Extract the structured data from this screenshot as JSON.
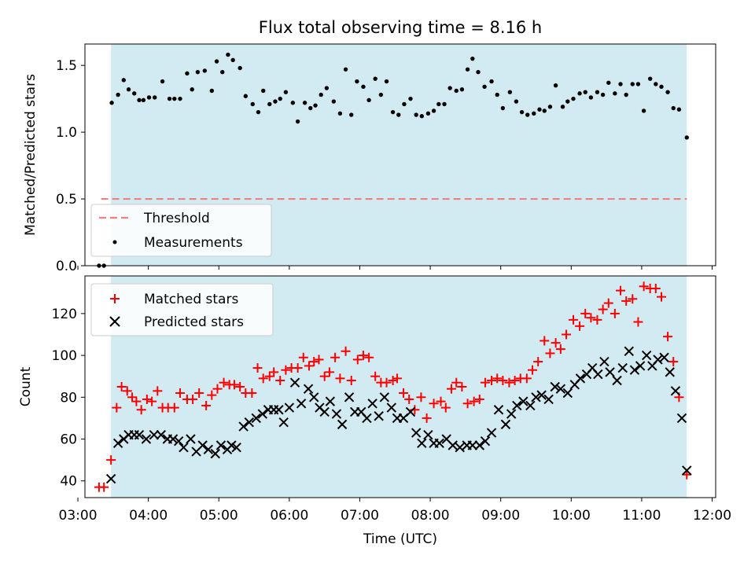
{
  "title": "Flux total observing time = 8.16 h",
  "colors": {
    "shade": "#add8e6",
    "threshold": "#f08080",
    "matched": "#ff0000",
    "predicted": "#000000",
    "measurements": "#000000"
  },
  "chart_data": [
    {
      "type": "scatter",
      "ylabel": "Matched/Predicted stars",
      "xlim": [
        3.1,
        12.05
      ],
      "ylim": [
        0,
        1.66
      ],
      "yticks": [
        0.0,
        0.5,
        1.0,
        1.5
      ],
      "ytick_labels": [
        "0.0",
        "0.5",
        "1.0",
        "1.5"
      ],
      "shaded_span": [
        3.47,
        11.64
      ],
      "threshold": {
        "y": 0.5,
        "x_range": [
          3.33,
          11.64
        ]
      },
      "legend": {
        "location": "lower-left",
        "entries": [
          "Threshold",
          "Measurements"
        ]
      },
      "series": [
        {
          "name": "Measurements",
          "x": [
            3.3,
            3.37,
            3.48,
            3.57,
            3.65,
            3.72,
            3.8,
            3.87,
            3.93,
            4.01,
            4.09,
            4.2,
            4.3,
            4.37,
            4.45,
            4.55,
            4.62,
            4.7,
            4.8,
            4.9,
            4.97,
            5.05,
            5.13,
            5.2,
            5.3,
            5.38,
            5.48,
            5.56,
            5.63,
            5.72,
            5.8,
            5.87,
            5.95,
            6.05,
            6.12,
            6.22,
            6.3,
            6.37,
            6.45,
            6.53,
            6.63,
            6.72,
            6.8,
            6.88,
            6.96,
            7.05,
            7.13,
            7.22,
            7.3,
            7.38,
            7.47,
            7.55,
            7.63,
            7.72,
            7.8,
            7.88,
            7.97,
            8.05,
            8.12,
            8.2,
            8.28,
            8.37,
            8.45,
            8.53,
            8.6,
            8.68,
            8.77,
            8.87,
            8.95,
            9.03,
            9.13,
            9.22,
            9.3,
            9.38,
            9.47,
            9.55,
            9.62,
            9.7,
            9.78,
            9.88,
            9.95,
            10.03,
            10.12,
            10.2,
            10.28,
            10.37,
            10.45,
            10.53,
            10.62,
            10.7,
            10.78,
            10.87,
            10.95,
            11.03,
            11.12,
            11.2,
            11.28,
            11.37,
            11.45,
            11.53,
            11.64
          ],
          "y": [
            0.0,
            0.0,
            1.22,
            1.28,
            1.39,
            1.32,
            1.29,
            1.24,
            1.24,
            1.26,
            1.26,
            1.38,
            1.25,
            1.25,
            1.25,
            1.44,
            1.32,
            1.45,
            1.46,
            1.31,
            1.53,
            1.45,
            1.58,
            1.54,
            1.48,
            1.27,
            1.21,
            1.15,
            1.31,
            1.21,
            1.23,
            1.25,
            1.3,
            1.22,
            1.08,
            1.22,
            1.18,
            1.2,
            1.28,
            1.33,
            1.23,
            1.14,
            1.47,
            1.13,
            1.38,
            1.34,
            1.24,
            1.4,
            1.28,
            1.38,
            1.15,
            1.13,
            1.21,
            1.25,
            1.13,
            1.12,
            1.14,
            1.16,
            1.21,
            1.21,
            1.33,
            1.31,
            1.32,
            1.47,
            1.55,
            1.45,
            1.34,
            1.38,
            1.28,
            1.18,
            1.3,
            1.23,
            1.15,
            1.13,
            1.14,
            1.17,
            1.16,
            1.19,
            1.35,
            1.19,
            1.23,
            1.25,
            1.29,
            1.3,
            1.26,
            1.3,
            1.28,
            1.37,
            1.29,
            1.36,
            1.28,
            1.36,
            1.36,
            1.16,
            1.4,
            1.36,
            1.34,
            1.3,
            1.18,
            1.17,
            0.96
          ]
        }
      ]
    },
    {
      "type": "scatter",
      "ylabel": "Count",
      "xlabel": "Time (UTC)",
      "xlim": [
        3.1,
        12.05
      ],
      "ylim": [
        32,
        138
      ],
      "xticks": [
        3,
        4,
        5,
        6,
        7,
        8,
        9,
        10,
        11,
        12
      ],
      "xtick_labels": [
        "03:00",
        "04:00",
        "05:00",
        "06:00",
        "07:00",
        "08:00",
        "09:00",
        "10:00",
        "11:00",
        "12:00"
      ],
      "yticks": [
        40,
        60,
        80,
        100,
        120
      ],
      "ytick_labels": [
        "40",
        "60",
        "80",
        "100",
        "120"
      ],
      "shaded_span": [
        3.47,
        11.64
      ],
      "legend": {
        "location": "upper-left",
        "entries": [
          "Matched stars",
          "Predicted stars"
        ]
      },
      "series": [
        {
          "name": "Matched stars",
          "x": [
            3.3,
            3.37,
            3.47,
            3.55,
            3.62,
            3.7,
            3.77,
            3.83,
            3.9,
            3.98,
            4.05,
            4.13,
            4.2,
            4.28,
            4.37,
            4.45,
            4.55,
            4.63,
            4.72,
            4.82,
            4.9,
            4.98,
            5.07,
            5.15,
            5.22,
            5.3,
            5.38,
            5.47,
            5.55,
            5.63,
            5.72,
            5.78,
            5.87,
            5.95,
            6.03,
            6.12,
            6.2,
            6.28,
            6.35,
            6.42,
            6.5,
            6.57,
            6.65,
            6.72,
            6.8,
            6.88,
            6.97,
            7.05,
            7.13,
            7.22,
            7.3,
            7.38,
            7.47,
            7.53,
            7.62,
            7.7,
            7.78,
            7.87,
            7.95,
            8.05,
            8.15,
            8.22,
            8.3,
            8.37,
            8.45,
            8.53,
            8.62,
            8.7,
            8.78,
            8.87,
            8.95,
            9.03,
            9.12,
            9.2,
            9.28,
            9.37,
            9.45,
            9.53,
            9.62,
            9.7,
            9.78,
            9.85,
            9.93,
            10.03,
            10.12,
            10.2,
            10.28,
            10.37,
            10.45,
            10.53,
            10.62,
            10.7,
            10.78,
            10.87,
            10.95,
            11.03,
            11.12,
            11.2,
            11.28,
            11.37,
            11.45,
            11.53,
            11.64
          ],
          "y": [
            37,
            37,
            50,
            75,
            85,
            83,
            80,
            78,
            74,
            79,
            78,
            83,
            75,
            75,
            75,
            82,
            79,
            79,
            82,
            76,
            81,
            84,
            87,
            86,
            86,
            85,
            82,
            82,
            94,
            89,
            90,
            92,
            88,
            93,
            94,
            94,
            99,
            95,
            97,
            98,
            90,
            92,
            99,
            89,
            102,
            88,
            98,
            100,
            99,
            90,
            87,
            87,
            88,
            89,
            82,
            79,
            74,
            80,
            70,
            77,
            78,
            75,
            84,
            87,
            85,
            77,
            78,
            79,
            87,
            88,
            89,
            88,
            87,
            88,
            89,
            89,
            93,
            97,
            107,
            101,
            106,
            103,
            110,
            117,
            114,
            120,
            118,
            117,
            122,
            125,
            120,
            131,
            126,
            127,
            116,
            133,
            132,
            132,
            128,
            109,
            97,
            80,
            43
          ]
        },
        {
          "name": "Predicted stars",
          "x": [
            3.47,
            3.57,
            3.65,
            3.72,
            3.8,
            3.87,
            3.97,
            4.08,
            4.18,
            4.27,
            4.35,
            4.43,
            4.5,
            4.6,
            4.68,
            4.77,
            4.85,
            4.95,
            5.03,
            5.12,
            5.18,
            5.25,
            5.35,
            5.43,
            5.53,
            5.62,
            5.7,
            5.78,
            5.85,
            5.92,
            6.0,
            6.08,
            6.17,
            6.27,
            6.35,
            6.43,
            6.5,
            6.58,
            6.67,
            6.75,
            6.85,
            6.93,
            7.02,
            7.1,
            7.18,
            7.27,
            7.35,
            7.45,
            7.53,
            7.62,
            7.72,
            7.8,
            7.88,
            7.97,
            8.05,
            8.13,
            8.23,
            8.32,
            8.42,
            8.52,
            8.6,
            8.7,
            8.78,
            8.87,
            8.97,
            9.07,
            9.15,
            9.23,
            9.32,
            9.42,
            9.5,
            9.58,
            9.68,
            9.77,
            9.85,
            9.95,
            10.05,
            10.13,
            10.22,
            10.3,
            10.38,
            10.47,
            10.55,
            10.65,
            10.73,
            10.82,
            10.9,
            10.98,
            11.07,
            11.15,
            11.23,
            11.32,
            11.4,
            11.48,
            11.57,
            11.64
          ],
          "y": [
            41,
            58,
            60,
            62,
            62,
            62,
            60,
            62,
            62,
            60,
            60,
            59,
            56,
            60,
            54,
            57,
            55,
            53,
            57,
            55,
            57,
            56,
            66,
            68,
            70,
            72,
            74,
            74,
            74,
            68,
            75,
            87,
            77,
            84,
            80,
            75,
            73,
            78,
            72,
            67,
            80,
            73,
            73,
            70,
            77,
            71,
            80,
            75,
            70,
            70,
            73,
            63,
            58,
            62,
            58,
            58,
            60,
            57,
            56,
            57,
            57,
            57,
            59,
            63,
            74,
            67,
            72,
            76,
            78,
            76,
            80,
            81,
            79,
            85,
            84,
            82,
            86,
            89,
            91,
            94,
            91,
            97,
            92,
            88,
            94,
            102,
            93,
            95,
            100,
            95,
            98,
            99,
            92,
            83,
            70,
            45
          ]
        }
      ]
    }
  ]
}
